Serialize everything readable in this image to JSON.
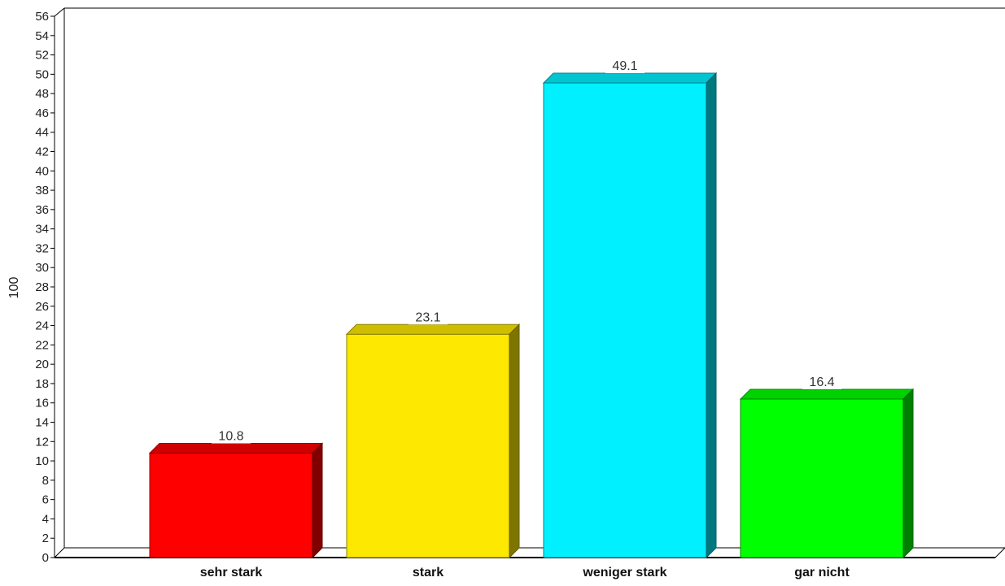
{
  "chart_data": {
    "type": "bar",
    "categories": [
      "sehr stark",
      "stark",
      "weniger stark",
      "gar nicht"
    ],
    "values": [
      10.8,
      23.1,
      49.1,
      16.4
    ],
    "data_labels": [
      "10.8",
      "23.1",
      "49.1",
      "16.4"
    ],
    "colors": [
      "#ff0000",
      "#fce800",
      "#00f0ff",
      "#00ff00"
    ],
    "xlabel": "",
    "ylabel": "100",
    "ylim": [
      0,
      56
    ],
    "ytick_step": 2,
    "grid": false,
    "legend": "none",
    "style": "3d-bars"
  }
}
